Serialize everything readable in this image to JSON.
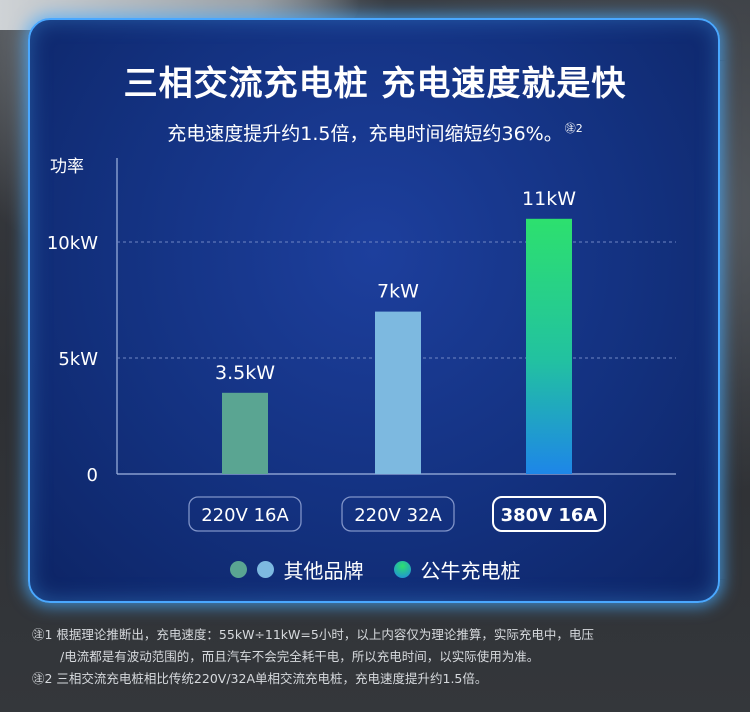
{
  "title": "三相交流充电桩 充电速度就是快",
  "subtitle": "充电速度提升约1.5倍，充电时间缩短约36%。",
  "subtitle_mark": "㊟2",
  "chart_data": {
    "type": "bar",
    "ylabel": "功率",
    "y_ticks": [
      "0",
      "5kW",
      "10kW"
    ],
    "y_tick_values": [
      0,
      5,
      10
    ],
    "ylim": [
      0,
      11
    ],
    "grid": true,
    "categories": [
      "220V 16A",
      "220V 32A",
      "380V 16A"
    ],
    "values": [
      3.5,
      7,
      11
    ],
    "value_labels": [
      "3.5kW",
      "7kW",
      "11kW"
    ],
    "bar_colors": [
      "#5aa592",
      "#7db9e0",
      "gradient:#2de06e-#1e86e8"
    ],
    "highlight_index": 2
  },
  "legend": {
    "other_label": "其他品牌",
    "bull_label": "公牛充电桩",
    "colors": [
      "#5aa592",
      "#7db9e0",
      "#22c46a"
    ]
  },
  "notes": [
    "㊟1 根据理论推断出，充电速度：55kW÷11kW=5小时，以上内容仅为理论推算，实际充电中，电压",
    "/电流都是有波动范围的，而且汽车不会完全耗干电，所以充电时间，以实际使用为准。",
    "㊟2 三相交流充电桩相比传统220V/32A单相交流充电桩，充电速度提升约1.5倍。"
  ]
}
